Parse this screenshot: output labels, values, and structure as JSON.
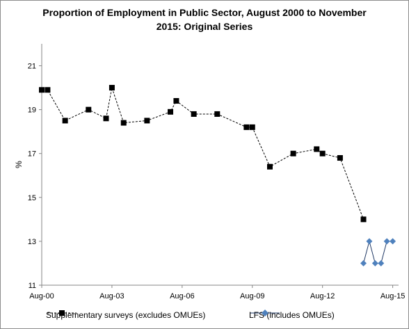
{
  "chart_data": {
    "type": "line",
    "title_line1": "Proportion of Employment in Public Sector, August 2000  to November",
    "title_line2": "2015:  Original Series",
    "ylabel": "%",
    "xlabel": "",
    "ylim": [
      11,
      22
    ],
    "yticks": [
      11,
      13,
      15,
      17,
      19,
      21
    ],
    "xlim": [
      "Aug-00",
      "Nov-15"
    ],
    "xticks": [
      "Aug-00",
      "Aug-03",
      "Aug-06",
      "Aug-09",
      "Aug-12",
      "Aug-15"
    ],
    "grid": false,
    "legend_position": "bottom",
    "series": [
      {
        "name": "Supplementary surveys (excludes OMUEs)",
        "color": "#000000",
        "line_style": "dashed",
        "marker": "square",
        "points": [
          {
            "x": "2000-08",
            "y": 19.9
          },
          {
            "x": "2000-11",
            "y": 19.9
          },
          {
            "x": "2001-08",
            "y": 18.5
          },
          {
            "x": "2002-08",
            "y": 19.0
          },
          {
            "x": "2003-05",
            "y": 18.6
          },
          {
            "x": "2003-08",
            "y": 20.0
          },
          {
            "x": "2004-02",
            "y": 18.4
          },
          {
            "x": "2005-02",
            "y": 18.5
          },
          {
            "x": "2006-02",
            "y": 18.9
          },
          {
            "x": "2006-05",
            "y": 19.4
          },
          {
            "x": "2007-02",
            "y": 18.8
          },
          {
            "x": "2008-02",
            "y": 18.8
          },
          {
            "x": "2009-05",
            "y": 18.2
          },
          {
            "x": "2009-08",
            "y": 18.2
          },
          {
            "x": "2010-05",
            "y": 16.4
          },
          {
            "x": "2011-05",
            "y": 17.0
          },
          {
            "x": "2012-05",
            "y": 17.2
          },
          {
            "x": "2012-08",
            "y": 17.0
          },
          {
            "x": "2013-05",
            "y": 16.8
          },
          {
            "x": "2014-05",
            "y": 14.0
          }
        ]
      },
      {
        "name": "LFS (includes OMUEs)",
        "color": "#4f81bd",
        "line_style": "solid",
        "marker": "diamond",
        "points": [
          {
            "x": "2014-05",
            "y": 12.0
          },
          {
            "x": "2014-08",
            "y": 13.0
          },
          {
            "x": "2014-11",
            "y": 12.0
          },
          {
            "x": "2015-02",
            "y": 12.0
          },
          {
            "x": "2015-05",
            "y": 13.0
          },
          {
            "x": "2015-08",
            "y": 13.0
          }
        ]
      }
    ]
  }
}
